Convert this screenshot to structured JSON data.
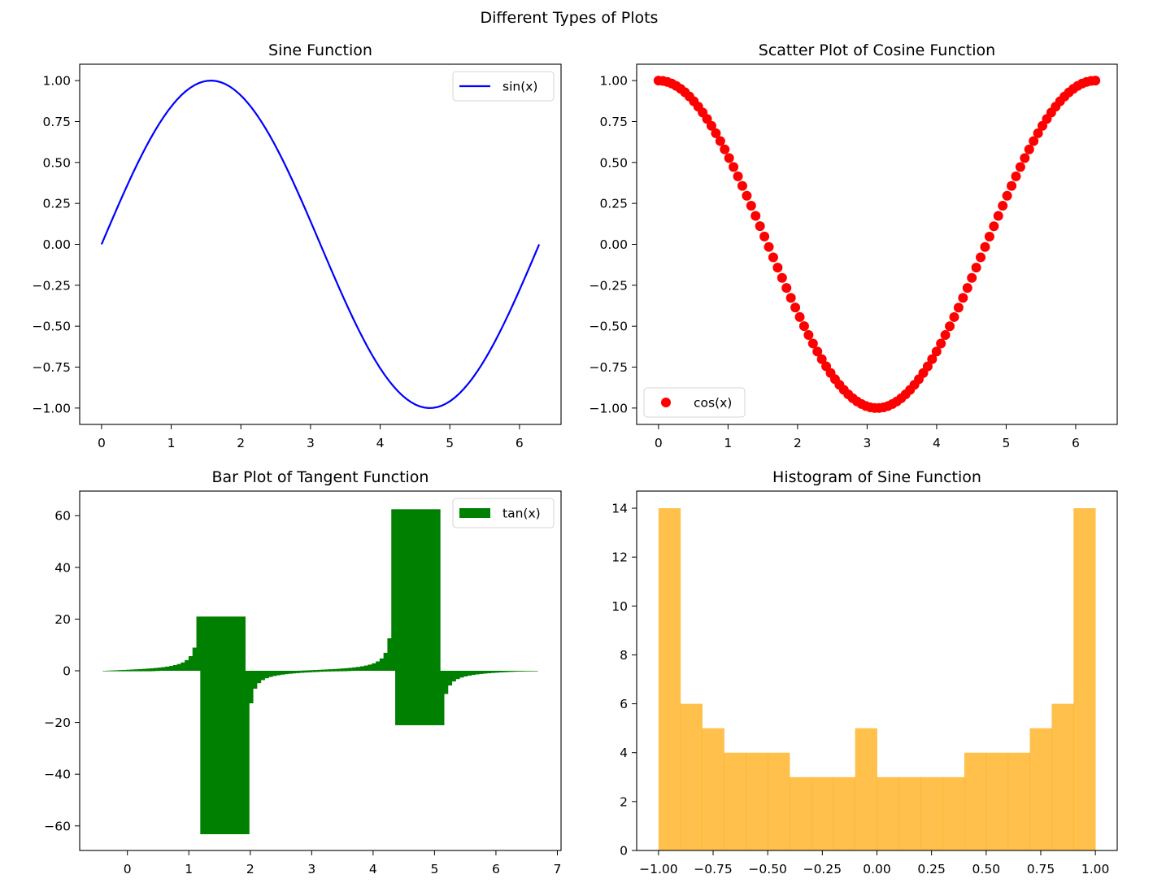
{
  "suptitle": "Different Types of Plots",
  "chart_data": [
    {
      "type": "line",
      "title": "Sine Function",
      "function": "sin(x)",
      "x_range": [
        0,
        6.283
      ],
      "n_points": 100,
      "color": "#0000ff",
      "series": [
        {
          "name": "sin(x)",
          "expression": "sin(x)"
        }
      ],
      "legend": "upper right",
      "xlim": [
        -0.314,
        6.597
      ],
      "ylim": [
        -1.1,
        1.1
      ],
      "xticks": [
        0,
        1,
        2,
        3,
        4,
        5,
        6
      ],
      "xticklabels": [
        "0",
        "1",
        "2",
        "3",
        "4",
        "5",
        "6"
      ],
      "yticks": [
        1.0,
        0.75,
        0.5,
        0.25,
        0.0,
        -0.25,
        -0.5,
        -0.75,
        -1.0
      ],
      "yticklabels": [
        "1.00",
        "0.75",
        "0.50",
        "0.25",
        "0.00",
        "−0.25",
        "−0.50",
        "−0.75",
        "−1.00"
      ],
      "xlabel": "",
      "ylabel": ""
    },
    {
      "type": "scatter",
      "title": "Scatter Plot of Cosine Function",
      "function": "cos(x)",
      "x_range": [
        0,
        6.283
      ],
      "n_points": 100,
      "color": "#ff0000",
      "series": [
        {
          "name": "cos(x)",
          "expression": "cos(x)"
        }
      ],
      "legend": "lower left",
      "xlim": [
        -0.314,
        6.597
      ],
      "ylim": [
        -1.1,
        1.1
      ],
      "xticks": [
        0,
        1,
        2,
        3,
        4,
        5,
        6
      ],
      "xticklabels": [
        "0",
        "1",
        "2",
        "3",
        "4",
        "5",
        "6"
      ],
      "yticks": [
        1.0,
        0.75,
        0.5,
        0.25,
        0.0,
        -0.25,
        -0.5,
        -0.75,
        -1.0
      ],
      "yticklabels": [
        "1.00",
        "0.75",
        "0.50",
        "0.25",
        "0.00",
        "−0.25",
        "−0.50",
        "−0.75",
        "−1.00"
      ],
      "xlabel": "",
      "ylabel": ""
    },
    {
      "type": "bar",
      "title": "Bar Plot of Tangent Function",
      "function": "tan(x)",
      "x_range": [
        0,
        6.283
      ],
      "n_points": 100,
      "bar_width": 0.8,
      "color": "#008000",
      "series": [
        {
          "name": "tan(x)",
          "expression": "tan(x)"
        }
      ],
      "legend": "upper right",
      "xlim": [
        -0.777,
        7.06
      ],
      "ylim": [
        -69.5,
        69.5
      ],
      "xticks": [
        0,
        1,
        2,
        3,
        4,
        5,
        6,
        7
      ],
      "xticklabels": [
        "0",
        "1",
        "2",
        "3",
        "4",
        "5",
        "6",
        "7"
      ],
      "yticks": [
        60,
        40,
        20,
        0,
        -20,
        -40,
        -60
      ],
      "yticklabels": [
        "60",
        "40",
        "20",
        "0",
        "−20",
        "−40",
        "−60"
      ],
      "xlabel": "",
      "ylabel": ""
    },
    {
      "type": "histogram",
      "title": "Histogram of Sine Function",
      "function": "sin(x)",
      "bins": 20,
      "color": "#ffa500",
      "alpha": 0.7,
      "bin_range": [
        -1.0,
        1.0
      ],
      "counts": [
        14,
        6,
        5,
        4,
        4,
        4,
        3,
        3,
        3,
        5,
        3,
        3,
        3,
        3,
        4,
        4,
        4,
        5,
        6,
        14
      ],
      "xlim": [
        -1.1,
        1.1
      ],
      "ylim": [
        0,
        14.7
      ],
      "xticks": [
        -1.0,
        -0.75,
        -0.5,
        -0.25,
        0.0,
        0.25,
        0.5,
        0.75,
        1.0
      ],
      "xticklabels": [
        "−1.00",
        "−0.75",
        "−0.50",
        "−0.25",
        "0.00",
        "0.25",
        "0.50",
        "0.75",
        "1.00"
      ],
      "yticks": [
        0,
        2,
        4,
        6,
        8,
        10,
        12,
        14
      ],
      "yticklabels": [
        "0",
        "2",
        "4",
        "6",
        "8",
        "10",
        "12",
        "14"
      ],
      "xlabel": "",
      "ylabel": ""
    }
  ]
}
